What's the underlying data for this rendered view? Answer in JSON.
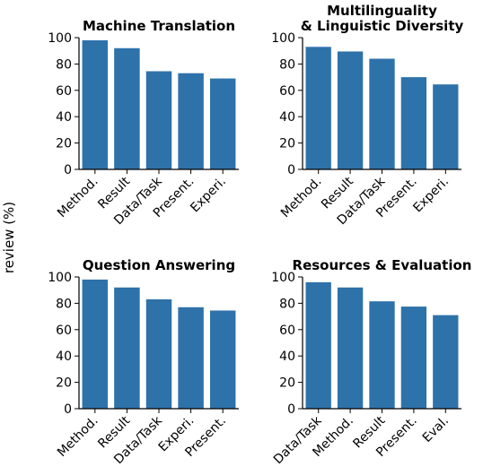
{
  "figure": {
    "shared_ylabel": "review (%)",
    "bar_color": "#2e72aa"
  },
  "chart_data": [
    {
      "type": "bar",
      "title": [
        "Machine Translation"
      ],
      "categories": [
        "Method.",
        "Result",
        "Data/Task",
        "Present.",
        "Experi."
      ],
      "values": [
        98,
        92,
        74.5,
        73,
        69
      ],
      "ylim": [
        0,
        100
      ],
      "yticks": [
        0,
        20,
        40,
        60,
        80,
        100
      ],
      "ylabel": "review (%)",
      "grid": false
    },
    {
      "type": "bar",
      "title": [
        "Multilinguality",
        "& Linguistic Diversity"
      ],
      "categories": [
        "Method.",
        "Result",
        "Data/Task",
        "Present.",
        "Experi."
      ],
      "values": [
        93,
        89.5,
        84,
        70,
        64.5
      ],
      "ylim": [
        0,
        100
      ],
      "yticks": [
        0,
        20,
        40,
        60,
        80,
        100
      ],
      "ylabel": "review (%)",
      "grid": false
    },
    {
      "type": "bar",
      "title": [
        "Question Answering"
      ],
      "categories": [
        "Method.",
        "Result",
        "Data/Task",
        "Experi.",
        "Present."
      ],
      "values": [
        98,
        92,
        83,
        77,
        74.5
      ],
      "ylim": [
        0,
        100
      ],
      "yticks": [
        0,
        20,
        40,
        60,
        80,
        100
      ],
      "ylabel": "review (%)",
      "grid": false
    },
    {
      "type": "bar",
      "title": [
        "Resources & Evaluation"
      ],
      "categories": [
        "Data/Task",
        "Method.",
        "Result",
        "Present.",
        "Eval."
      ],
      "values": [
        96,
        92,
        81.5,
        77.5,
        71
      ],
      "ylim": [
        0,
        100
      ],
      "yticks": [
        0,
        20,
        40,
        60,
        80,
        100
      ],
      "ylabel": "review (%)",
      "grid": false
    }
  ]
}
